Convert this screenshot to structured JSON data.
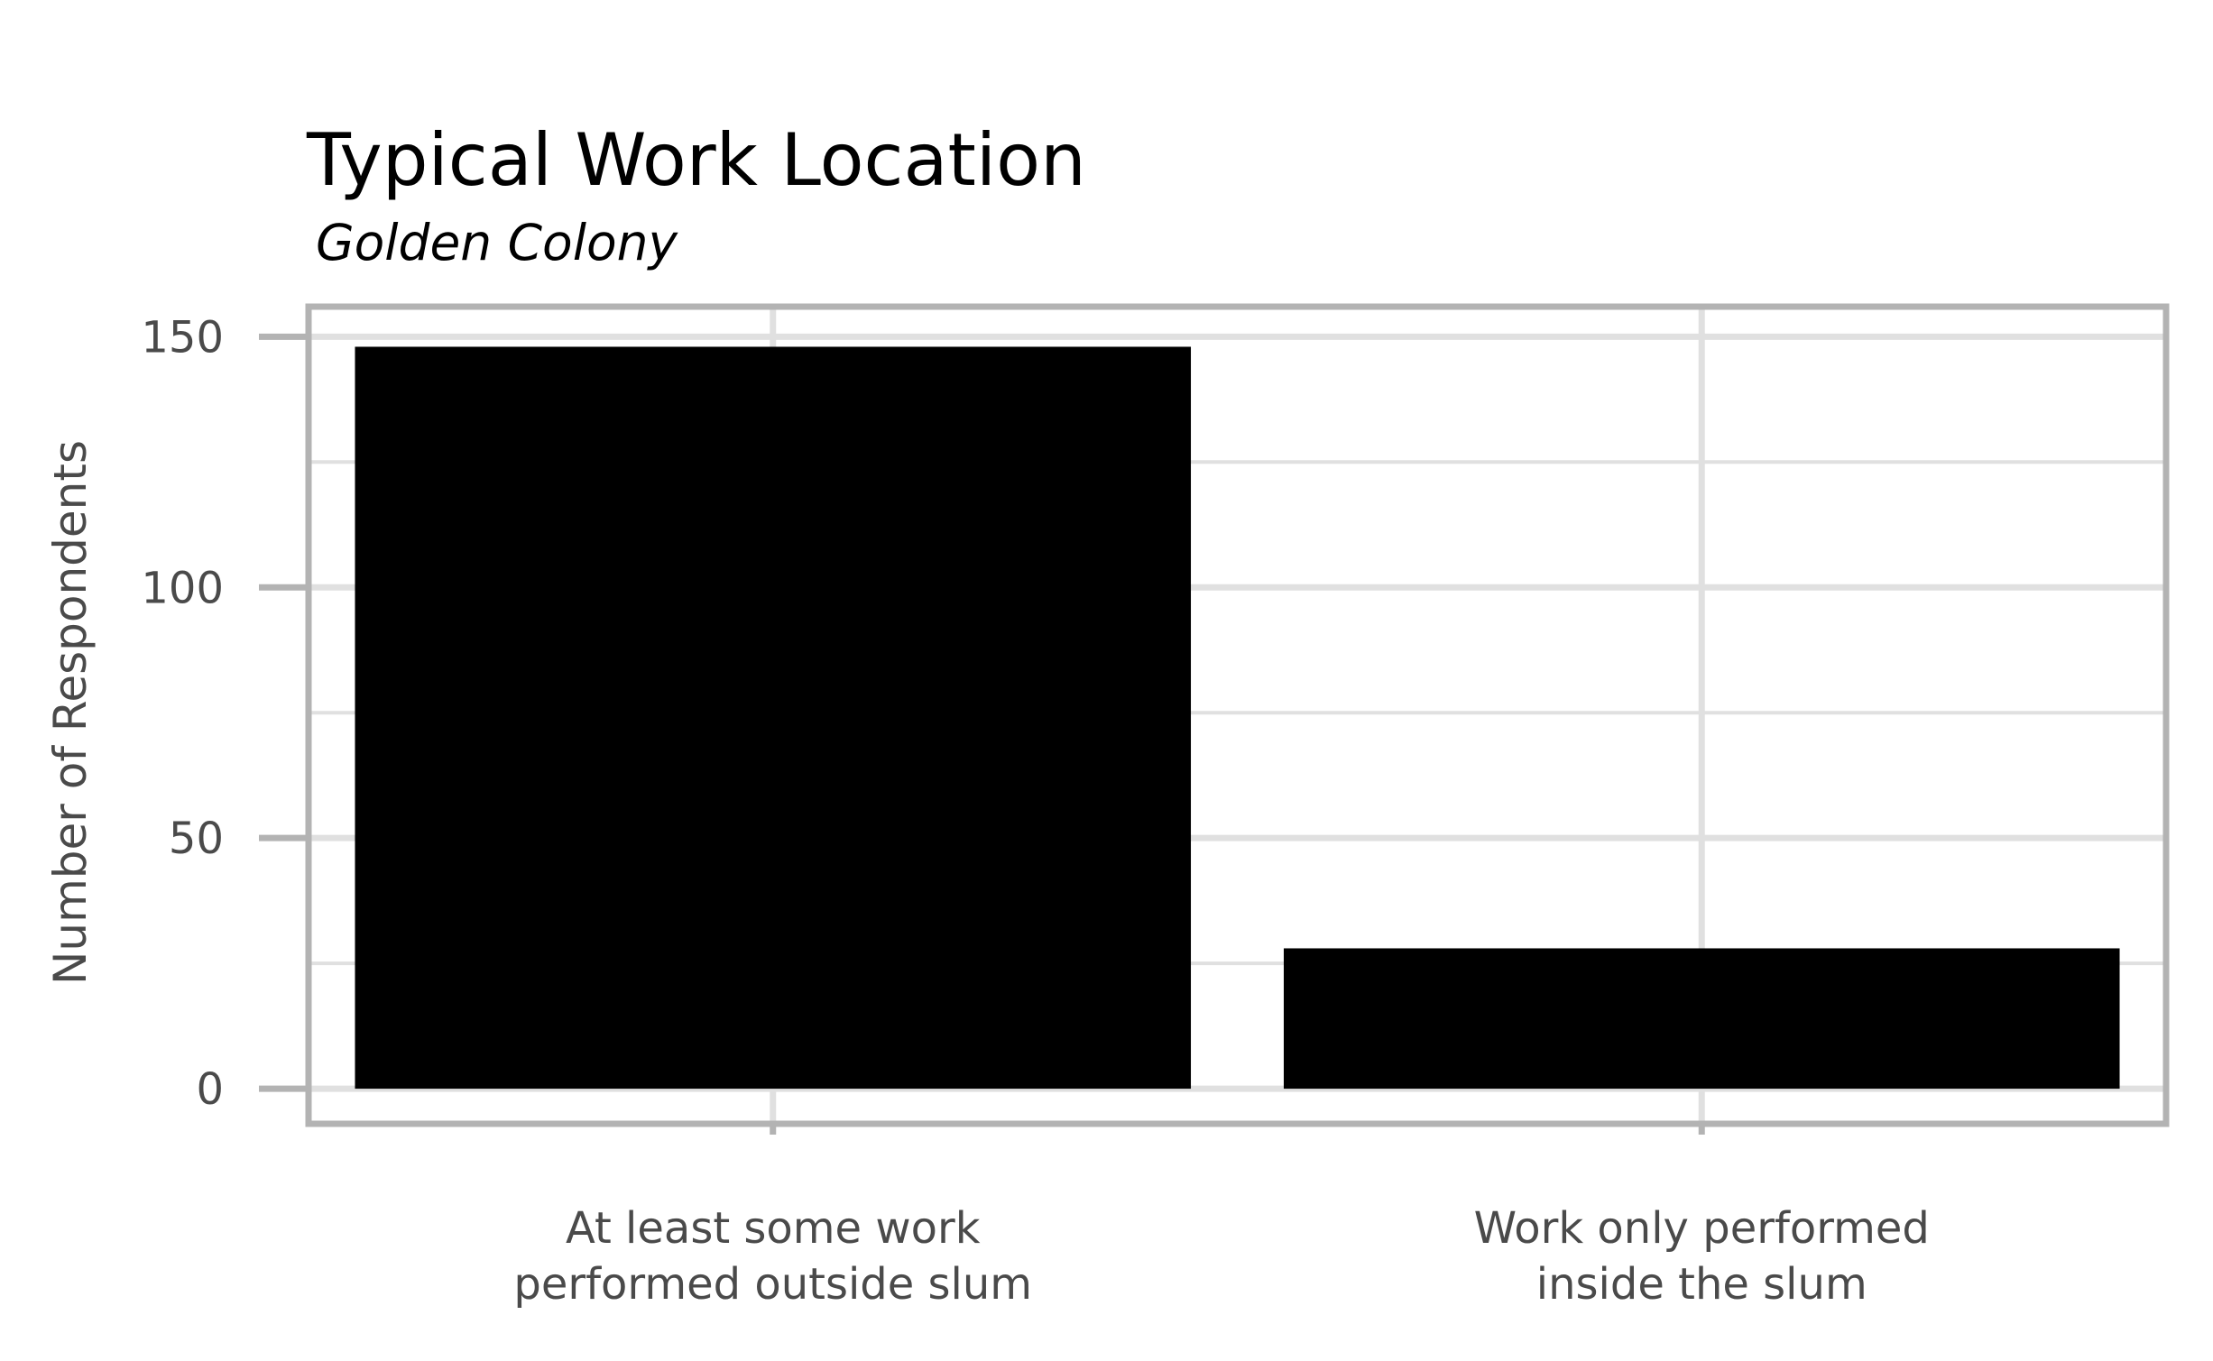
{
  "chart_data": {
    "type": "bar",
    "title": "Typical Work Location",
    "subtitle": "Golden Colony",
    "xlabel": "",
    "ylabel": "Number of Respondents",
    "categories": [
      [
        "At least some work",
        "performed outside slum"
      ],
      [
        "Work only performed",
        "inside the slum"
      ]
    ],
    "values": [
      148,
      28
    ],
    "ylim": [
      -7,
      156
    ],
    "yticks": [
      0,
      50,
      100,
      150
    ],
    "ytick_labels": [
      "0",
      "50",
      "100",
      "150"
    ],
    "minor_yticks": [
      25,
      75,
      125
    ],
    "grid": true,
    "legend": "none",
    "colors": {
      "bar": "#000000",
      "grid": "#e0e0e0",
      "panel_border": "#b3b3b3",
      "tick_text": "#4a4a4a"
    }
  }
}
